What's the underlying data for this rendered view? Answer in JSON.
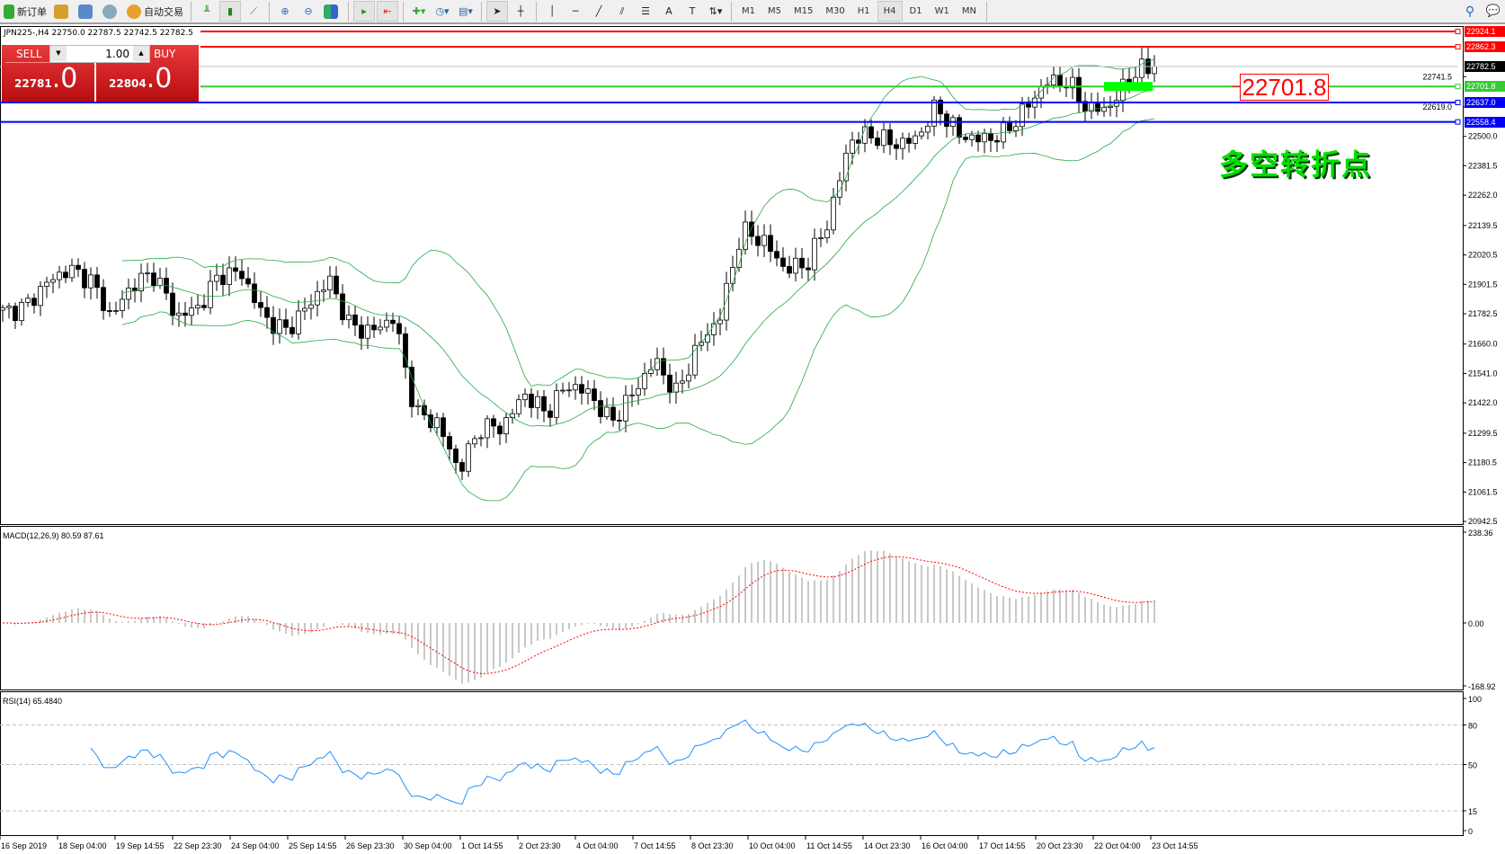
{
  "toolbar": {
    "new_order": "新订单",
    "auto_trading": "自动交易",
    "timeframes": [
      "M1",
      "M5",
      "M15",
      "M30",
      "H1",
      "H4",
      "D1",
      "W1",
      "MN"
    ],
    "active_timeframe": "H4"
  },
  "symbol_info": "JPN225-,H4  22750.0 22787.5 22742.5 22782.5",
  "trade_panel": {
    "sell_label": "SELL",
    "buy_label": "BUY",
    "lots": "1.00",
    "sell_price_main": "22781",
    "sell_price_big": ".0",
    "buy_price_main": "22804",
    "buy_price_big": ".0"
  },
  "price_lines": [
    {
      "price": 22924.1,
      "label": "22924.1",
      "color": "#ff0000"
    },
    {
      "price": 22862.3,
      "label": "22862.3",
      "color": "#ff0000"
    },
    {
      "price": 22782.5,
      "label": "22782.5",
      "color": "#000000"
    },
    {
      "price": 22701.8,
      "label": "22701.8",
      "color": "#33cc33"
    },
    {
      "price": 22637.0,
      "label": "22637.0",
      "color": "#0000ff"
    },
    {
      "price": 22558.4,
      "label": "22558.4",
      "color": "#0000ff"
    }
  ],
  "annotation_price": "22701.8",
  "annotation_text": "多空转折点",
  "price_axis": [
    "22741.5",
    "22619.0",
    "22500.0",
    "22381.5",
    "22262.0",
    "22139.5",
    "22020.5",
    "21901.5",
    "21782.5",
    "21660.0",
    "21541.0",
    "21422.0",
    "21299.5",
    "21180.5",
    "21061.5",
    "20942.5"
  ],
  "macd": {
    "label": "MACD(12,26,9) 80.59 87.61",
    "axis": [
      "238.36",
      "0.00",
      "-168.92"
    ]
  },
  "rsi": {
    "label": "RSI(14) 65.4840",
    "axis": [
      "100",
      "80",
      "50",
      "15",
      "0"
    ]
  },
  "time_axis": [
    "16 Sep 2019",
    "18 Sep 04:00",
    "19 Sep 14:55",
    "22 Sep 23:30",
    "24 Sep 04:00",
    "25 Sep 14:55",
    "26 Sep 23:30",
    "30 Sep 04:00",
    "1 Oct 14:55",
    "2 Oct 23:30",
    "4 Oct 04:00",
    "7 Oct 14:55",
    "8 Oct 23:30",
    "10 Oct 04:00",
    "11 Oct 14:55",
    "14 Oct 23:30",
    "16 Oct 04:00",
    "17 Oct 14:55",
    "20 Oct 23:30",
    "22 Oct 04:00",
    "23 Oct 14:55"
  ],
  "chart_data": {
    "type": "candlestick",
    "symbol": "JPN225-",
    "timeframe": "H4",
    "close_waypoints": [
      21789,
      21808,
      21905,
      21963,
      21924,
      21769,
      21905,
      21944,
      21769,
      21808,
      21944,
      21944,
      21769,
      21711,
      21808,
      21924,
      21730,
      21711,
      21769,
      21381,
      21342,
      21148,
      21323,
      21323,
      21459,
      21381,
      21497,
      21459,
      21342,
      21459,
      21594,
      21459,
      21653,
      21769,
      22118,
      22079,
      21963,
      21982,
      22157,
      22487,
      22506,
      22468,
      22487,
      22623,
      22506,
      22487,
      22506,
      22604,
      22720,
      22720,
      22604,
      22623,
      22759,
      22778
    ],
    "indicators": [
      "Bollinger Bands(20,2)",
      "MACD(12,26,9)",
      "RSI(14)"
    ],
    "colors": {
      "bull": "#ffffff",
      "bear": "#000000",
      "bands": "#22aa44",
      "macd_signal": "#ff0000",
      "rsi": "#1e90ff"
    }
  }
}
